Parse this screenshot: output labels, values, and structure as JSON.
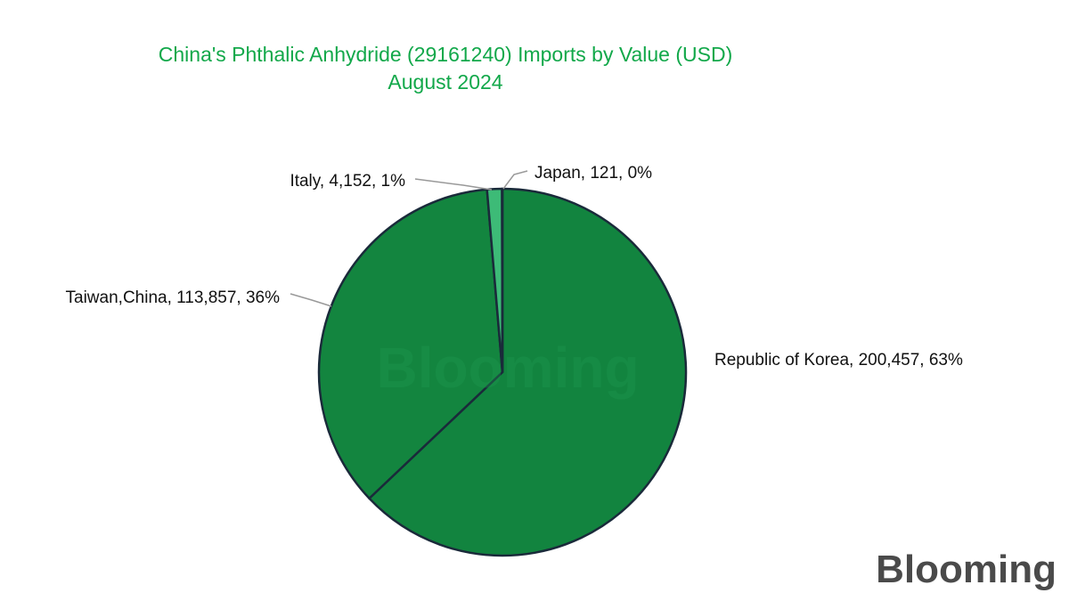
{
  "chart_data": {
    "type": "pie",
    "title": "China's Phthalic Anhydride (29161240) Imports by Value (USD)",
    "subtitle": "August 2024",
    "slices": [
      {
        "label": "Republic of Korea",
        "value": 200457,
        "value_text": "200,457",
        "percent_text": "63%",
        "color": "#12843f"
      },
      {
        "label": "Taiwan,China",
        "value": 113857,
        "value_text": "113,857",
        "percent_text": "36%",
        "color": "#13853f"
      },
      {
        "label": "Italy",
        "value": 4152,
        "value_text": "4,152",
        "percent_text": "1%",
        "color": "#3dbb77"
      },
      {
        "label": "Japan",
        "value": 121,
        "value_text": "121",
        "percent_text": "0%",
        "color": "#5fd49a"
      }
    ]
  },
  "watermark": {
    "text": "Blooming"
  },
  "brand": {
    "logo_text": "Blooming"
  },
  "colors": {
    "title": "#12a84a",
    "slice_border": "#1a2a3a",
    "leader_line": "#999999"
  }
}
